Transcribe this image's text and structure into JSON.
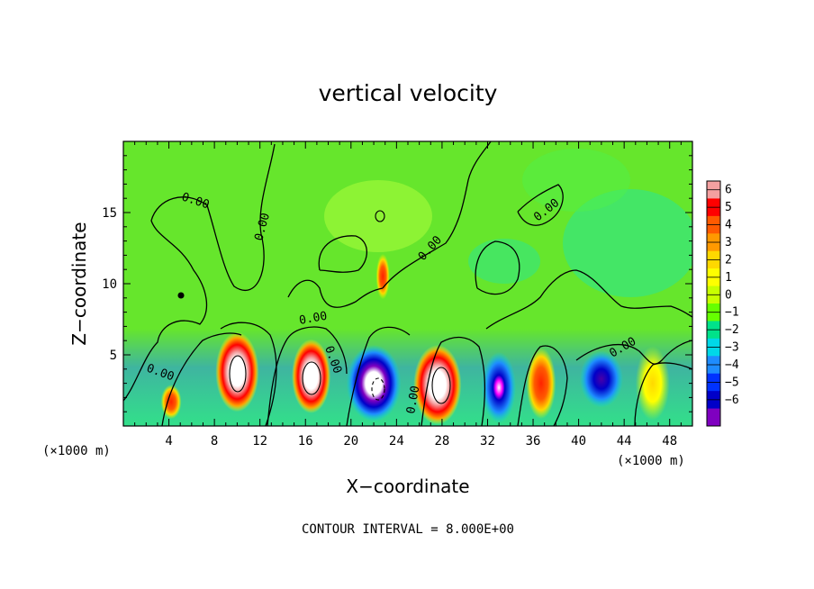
{
  "chart_data": {
    "type": "heatmap",
    "title": "vertical velocity",
    "xlabel": "X−coordinate",
    "ylabel": "Z−coordinate",
    "x_unit_label": "(×1000 m)",
    "z_unit_label": "(×1000 m)",
    "xlim": [
      0,
      50
    ],
    "ylim": [
      0,
      20
    ],
    "x_ticks": [
      4,
      8,
      12,
      16,
      20,
      24,
      28,
      32,
      36,
      40,
      44,
      48
    ],
    "y_ticks": [
      5,
      10,
      15
    ],
    "colorbar": {
      "ticks": [
        "6",
        "5",
        "4",
        "3",
        "2",
        "1",
        "0",
        "−1",
        "−2",
        "−3",
        "−4",
        "−5",
        "−6"
      ],
      "colors": [
        "#f4a0a0",
        "#ff0000",
        "#ff5a00",
        "#ff9900",
        "#ffd800",
        "#ffff00",
        "#c8ff00",
        "#66ff00",
        "#00e28a",
        "#00d8e8",
        "#1e8cff",
        "#0032ff",
        "#0000c8",
        "#7f00c0"
      ]
    },
    "contour_labels": [
      "0.00",
      "0.00",
      "0.00",
      "0.00",
      "0.00",
      "0.00",
      "0.00",
      "0.00",
      "0.00"
    ],
    "cells": [
      {
        "x": 4.2,
        "z": 1.7,
        "rx": 0.9,
        "rz": 1.2,
        "value": 4
      },
      {
        "x": 10.0,
        "z": 3.8,
        "rx": 1.9,
        "rz": 2.8,
        "value": 7
      },
      {
        "x": 16.5,
        "z": 3.5,
        "rx": 1.7,
        "rz": 2.6,
        "value": 7
      },
      {
        "x": 22.0,
        "z": 3.0,
        "rx": 2.4,
        "rz": 2.7,
        "value": -7
      },
      {
        "x": 27.6,
        "z": 2.9,
        "rx": 2.1,
        "rz": 2.8,
        "value": 7
      },
      {
        "x": 33.0,
        "z": 2.7,
        "rx": 1.5,
        "rz": 2.5,
        "value": -6
      },
      {
        "x": 36.7,
        "z": 3.0,
        "rx": 1.3,
        "rz": 2.5,
        "value": 4
      },
      {
        "x": 42.0,
        "z": 3.3,
        "rx": 1.9,
        "rz": 2.0,
        "value": -5
      },
      {
        "x": 46.5,
        "z": 3.0,
        "rx": 1.5,
        "rz": 2.6,
        "value": 2
      },
      {
        "x": 22.8,
        "z": 10.5,
        "rx": 0.6,
        "rz": 1.6,
        "value": 4
      }
    ],
    "footer": "CONTOUR INTERVAL = 8.000E+00"
  }
}
